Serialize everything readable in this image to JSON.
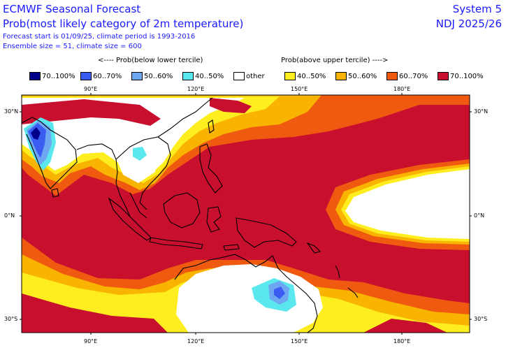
{
  "header": {
    "title": "ECMWF Seasonal Forecast",
    "subtitle": "Prob(most likely category of 2m temperature)",
    "forecast_line": "Forecast start is 01/09/25, climate period is 1993-2016",
    "ensemble_line": "Ensemble size = 51, climate size = 600",
    "system": "System 5",
    "period": "NDJ 2025/26"
  },
  "legend": {
    "below_header": "<---- Prob(below lower tercile)",
    "above_header": "Prob(above upper tercile) ---->",
    "items": [
      {
        "label": "70..100%",
        "color": "#00008b"
      },
      {
        "label": "60..70%",
        "color": "#3a5cf0"
      },
      {
        "label": "50..60%",
        "color": "#6fa6f2"
      },
      {
        "label": "40..50%",
        "color": "#5ae8ee"
      },
      {
        "label": "other",
        "color": "#ffffff"
      },
      {
        "label": "40..50%",
        "color": "#ffee1f"
      },
      {
        "label": "50..60%",
        "color": "#f8b400"
      },
      {
        "label": "60..70%",
        "color": "#f05a10"
      },
      {
        "label": "70..100%",
        "color": "#c8102e"
      }
    ]
  },
  "map": {
    "region": "Indian Ocean / Maritime Continent / Western Pacific",
    "lon_ticks": [
      "90°E",
      "120°E",
      "150°E",
      "180°E"
    ],
    "lat_ticks_left": [
      "30°N",
      "0°N",
      "30°S"
    ],
    "lat_ticks_right": [
      "30°N",
      "0°N",
      "30°S"
    ],
    "lon_range": [
      70,
      200
    ],
    "lat_range": [
      -32,
      33
    ],
    "dominant_category": "70..100% above upper tercile"
  }
}
